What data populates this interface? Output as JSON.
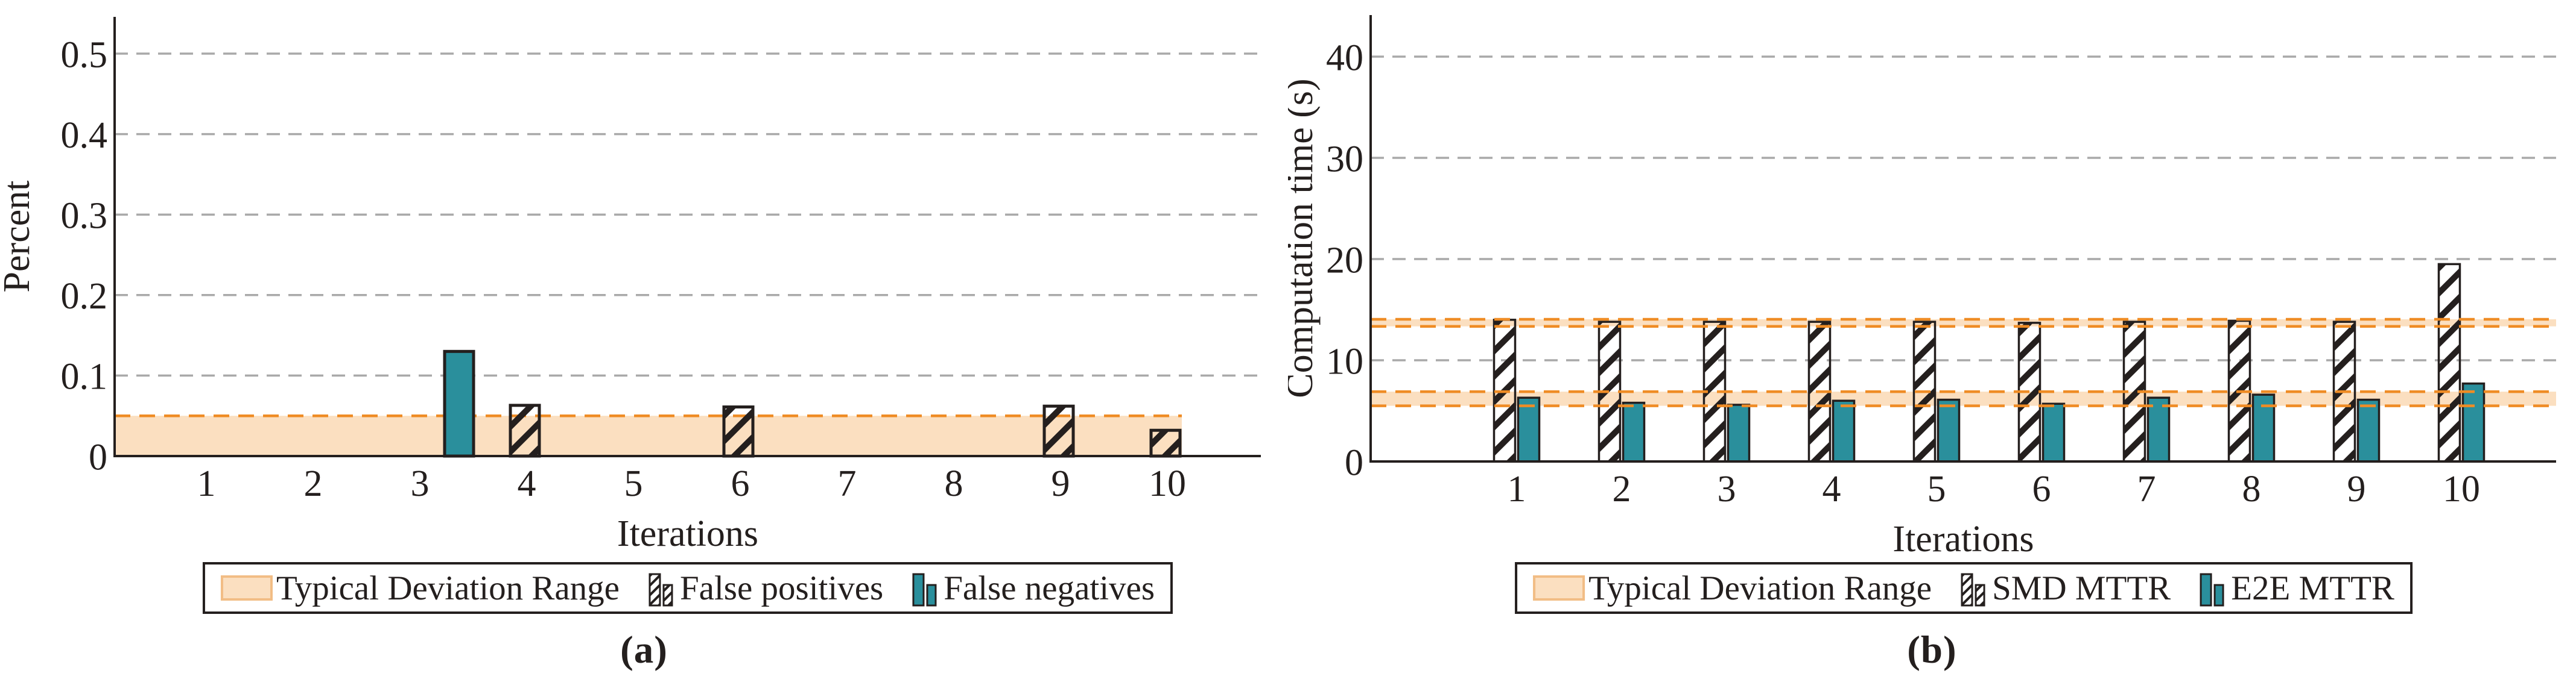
{
  "colors": {
    "teal": "#2a8f9c",
    "band_fill": "#fbdfc0",
    "band_edge": "#ef8c25",
    "swatch_border": "#f2bd85",
    "grid": "#a9a9a9",
    "ink": "#241f1e"
  },
  "panels": [
    {
      "caption": "(a)",
      "legend": [
        {
          "label": "Typical Deviation Range",
          "icon": "band-swatch"
        },
        {
          "label": "False positives",
          "icon": "hatched-bars"
        },
        {
          "label": "False negatives",
          "icon": "teal-bars"
        }
      ]
    },
    {
      "caption": "(b)",
      "legend": [
        {
          "label": "Typical Deviation Range",
          "icon": "band-swatch"
        },
        {
          "label": "SMD MTTR",
          "icon": "hatched-bars"
        },
        {
          "label": "E2E MTTR",
          "icon": "teal-bars"
        }
      ]
    }
  ],
  "chart_data": [
    {
      "id": "a",
      "type": "bar",
      "title": "",
      "xlabel": "Iterations",
      "ylabel": "Percent",
      "categories": [
        "1",
        "2",
        "3",
        "4",
        "5",
        "6",
        "7",
        "8",
        "9",
        "10"
      ],
      "ylim": [
        0,
        0.55
      ],
      "yticks": [
        0,
        0.1,
        0.2,
        0.3,
        0.4,
        0.5
      ],
      "ytick_labels": [
        "0",
        "0.1",
        "0.2",
        "0.3",
        "0.4",
        "0.5"
      ],
      "grid": "horizontal-dashed",
      "legend_position": "below",
      "series": [
        {
          "name": "False positives",
          "pattern": "hatch",
          "values": [
            0,
            0,
            0,
            0.063,
            0,
            0.061,
            0,
            0,
            0.062,
            0.032
          ]
        },
        {
          "name": "False negatives",
          "pattern": "solid-teal",
          "values": [
            0,
            0,
            0.13,
            0,
            0,
            0,
            0,
            0,
            0,
            0
          ]
        }
      ],
      "bands": [
        {
          "name": "Typical Deviation Range",
          "y_from": 0,
          "y_to": 0.05,
          "dashed_edges": [
            "top"
          ]
        }
      ]
    },
    {
      "id": "b",
      "type": "bar",
      "title": "",
      "xlabel": "Iterations",
      "ylabel": "Computation time (s)",
      "categories": [
        "1",
        "2",
        "3",
        "4",
        "5",
        "6",
        "7",
        "8",
        "9",
        "10"
      ],
      "ylim": [
        0,
        44
      ],
      "yticks": [
        0,
        10,
        20,
        30,
        40
      ],
      "ytick_labels": [
        "0",
        "10",
        "20",
        "30",
        "40"
      ],
      "grid": "horizontal-dashed",
      "legend_position": "below",
      "series": [
        {
          "name": "SMD MTTR",
          "pattern": "hatch",
          "values": [
            14.0,
            13.8,
            13.8,
            13.8,
            13.8,
            13.7,
            13.8,
            13.9,
            13.8,
            19.5
          ]
        },
        {
          "name": "E2E MTTR",
          "pattern": "solid-teal",
          "values": [
            6.3,
            5.8,
            5.6,
            6.0,
            6.1,
            5.7,
            6.3,
            6.6,
            6.1,
            7.7
          ]
        }
      ],
      "bands": [
        {
          "name": "Typical Deviation Range",
          "y_from": 13.35,
          "y_to": 14.05,
          "dashed_edges": [
            "top",
            "bottom"
          ]
        },
        {
          "name": "Typical Deviation Range",
          "y_from": 5.5,
          "y_to": 6.9,
          "dashed_edges": [
            "top",
            "bottom"
          ]
        }
      ]
    }
  ]
}
